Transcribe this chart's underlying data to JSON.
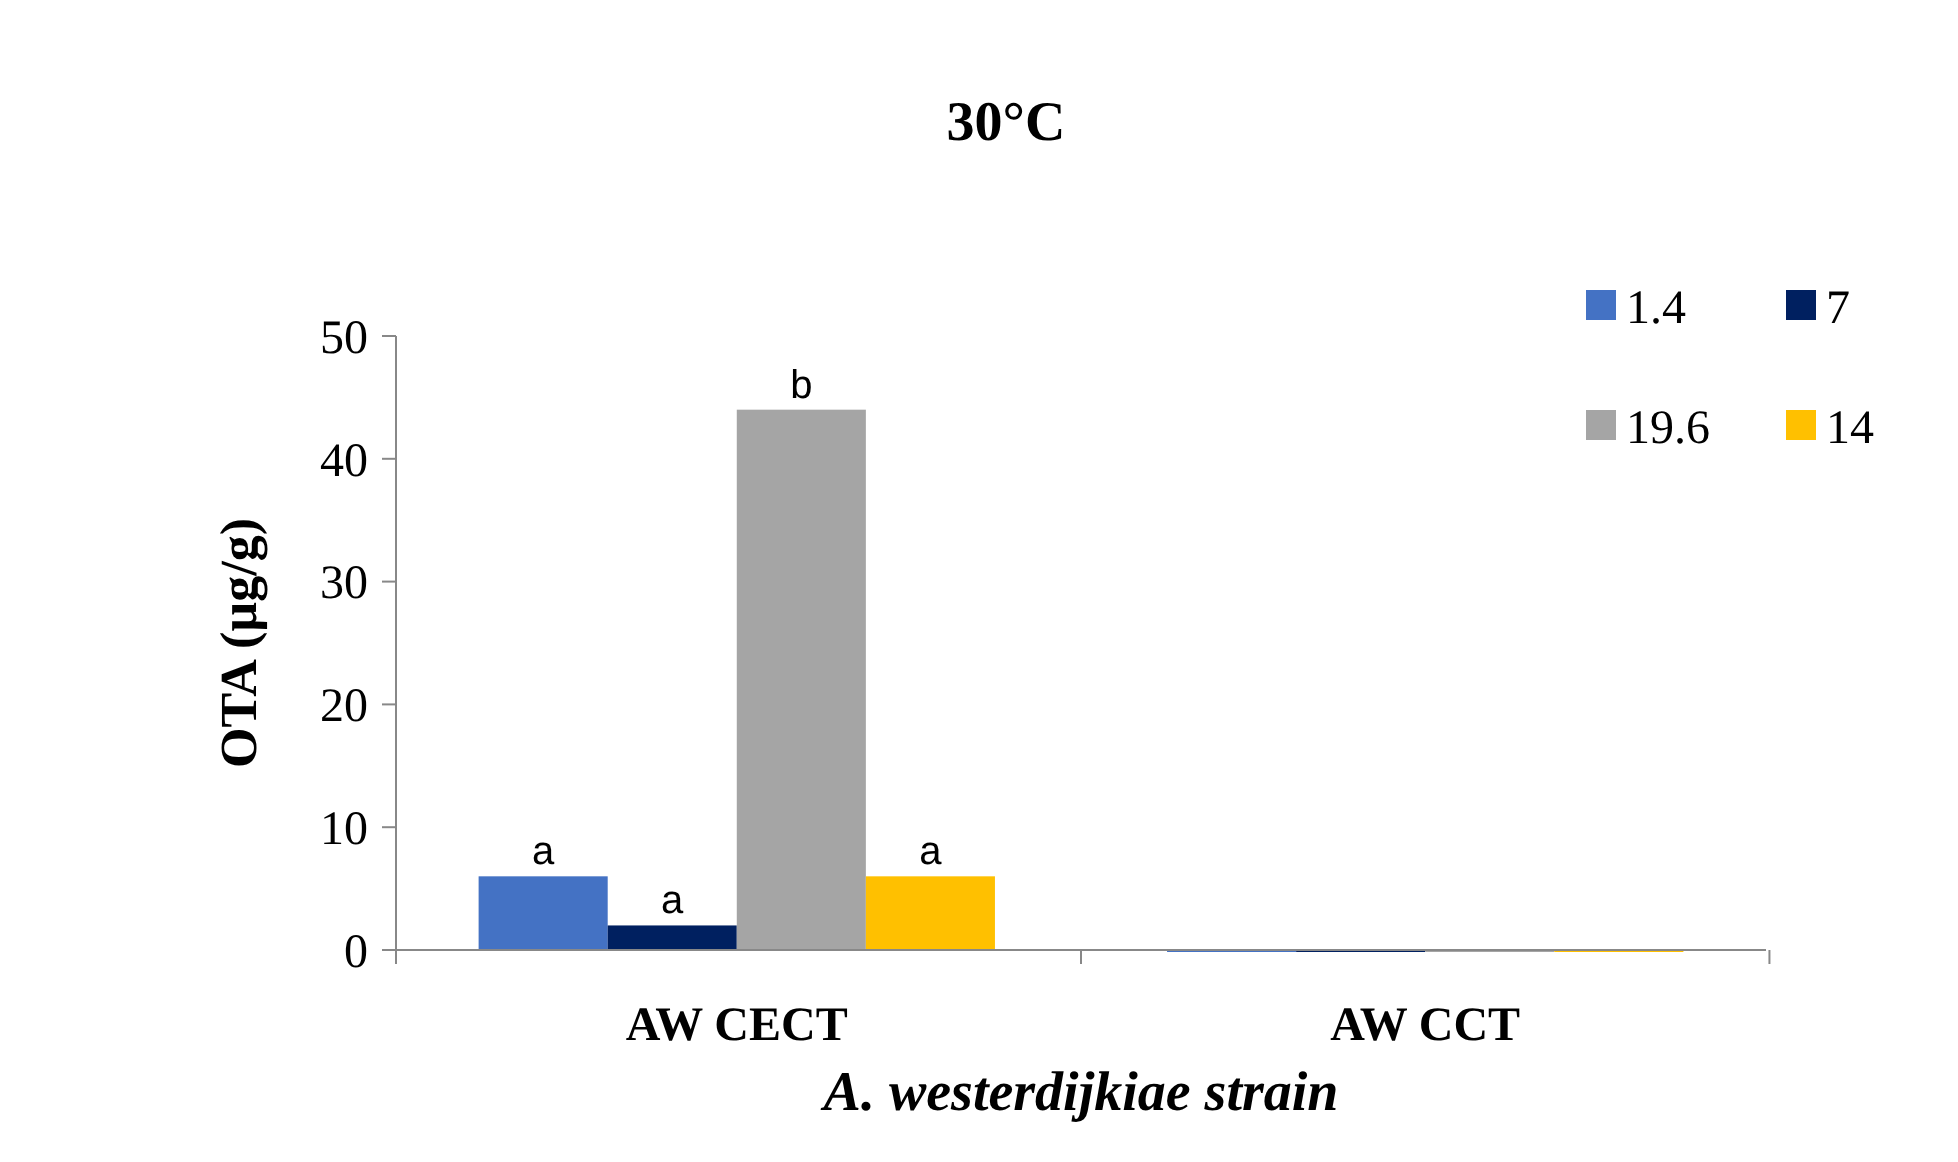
{
  "chart_data": {
    "type": "bar",
    "title": "30°C",
    "ylabel": "OTA (µg/g)",
    "xlabel": "A. westerdijkiae strain",
    "categories": [
      "AW CECT",
      "AW CCT"
    ],
    "series": [
      {
        "name": "1.4",
        "color": "#4472c4",
        "values": [
          6,
          0
        ]
      },
      {
        "name": "7",
        "color": "#002060",
        "values": [
          2,
          0
        ]
      },
      {
        "name": "19.6",
        "color": "#a5a5a5",
        "values": [
          44,
          0
        ]
      },
      {
        "name": "14",
        "color": "#ffc000",
        "values": [
          6,
          0
        ]
      }
    ],
    "ylim": [
      0,
      50
    ],
    "yticks": [
      0,
      10,
      20,
      30,
      40,
      50
    ],
    "legend": "top right",
    "annotations": [
      "a",
      "a",
      "b",
      "a"
    ]
  }
}
